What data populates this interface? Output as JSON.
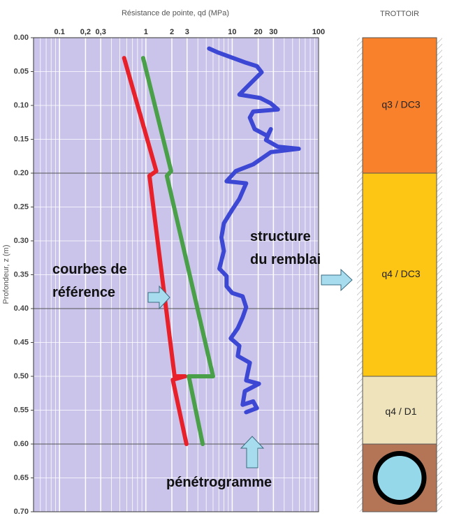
{
  "chart_data": {
    "type": "line",
    "title": "Résistance de pointe, qd (MPa)",
    "y_label": "Profondeur, z (m)",
    "x_log": true,
    "y_inverted": true,
    "background": "#cbc4ea",
    "xlim": [
      0.05,
      100
    ],
    "xticks": [
      0.1,
      {
        "value": 0.2,
        "label": "0,2"
      },
      {
        "value": 0.3,
        "label": "0,3"
      },
      1,
      2,
      3,
      10,
      20,
      30,
      100
    ],
    "xticks_minor": [
      0.06,
      0.07,
      0.08,
      0.09,
      0.4,
      0.5,
      0.6,
      0.7,
      0.8,
      0.9,
      4,
      5,
      6,
      7,
      8,
      9,
      40,
      50,
      60,
      70,
      80,
      90
    ],
    "ylim": [
      0,
      0.7
    ],
    "yticks": [
      {
        "value": 0,
        "label": "0.00"
      },
      {
        "value": 0.05,
        "label": "0.05"
      },
      {
        "value": 0.1,
        "label": "0.10"
      },
      {
        "value": 0.15,
        "label": "0.15"
      },
      {
        "value": 0.2,
        "label": "0.20"
      },
      {
        "value": 0.25,
        "label": "0.25"
      },
      {
        "value": 0.3,
        "label": "0.30"
      },
      {
        "value": 0.35,
        "label": "0.35"
      },
      {
        "value": 0.4,
        "label": "0.40"
      },
      {
        "value": 0.45,
        "label": "0.45"
      },
      {
        "value": 0.5,
        "label": "0.50"
      },
      {
        "value": 0.55,
        "label": "0.55"
      },
      {
        "value": 0.6,
        "label": "0.60"
      },
      {
        "value": 0.65,
        "label": "0.65"
      },
      {
        "value": 0.7,
        "label": "0.70"
      }
    ],
    "yticks_major": [
      0.2,
      0.4,
      0.6
    ],
    "series": [
      {
        "color": "#e8202a",
        "x": [
          0.56,
          1.32,
          1.1,
          2.15,
          2.85,
          2.05,
          2.95
        ],
        "y": [
          0.03,
          0.197,
          0.204,
          0.5,
          0.5,
          0.505,
          0.6
        ]
      },
      {
        "color": "#4aa048",
        "x": [
          0.93,
          1.96,
          1.75,
          6.0,
          3.13,
          3.2,
          4.55
        ],
        "y": [
          0.03,
          0.197,
          0.204,
          0.5,
          0.5,
          0.505,
          0.6
        ]
      },
      {
        "color": "#3c48d4",
        "x": [
          5.4,
          6.9,
          14.5,
          19.3,
          21.9,
          12.1,
          21.1,
          28,
          33.8,
          17.5,
          16,
          18.2,
          25.5,
          28,
          24.6,
          33.8,
          59,
          28,
          17.5,
          11,
          8.6,
          14.5,
          12.1,
          10,
          8.0,
          7.5,
          8.0,
          7.1,
          8.6,
          8.6,
          10,
          13.2,
          14.5,
          13.2,
          11.6,
          9.6,
          12.1,
          11.6,
          16,
          14.5,
          20.4,
          14.0,
          13.2,
          17.5,
          19.3,
          14.5
        ],
        "y": [
          0.016,
          0.022,
          0.037,
          0.042,
          0.051,
          0.084,
          0.089,
          0.097,
          0.106,
          0.109,
          0.118,
          0.135,
          0.145,
          0.135,
          0.151,
          0.161,
          0.164,
          0.169,
          0.187,
          0.197,
          0.212,
          0.215,
          0.238,
          0.254,
          0.274,
          0.295,
          0.315,
          0.341,
          0.352,
          0.367,
          0.377,
          0.382,
          0.398,
          0.413,
          0.429,
          0.444,
          0.455,
          0.47,
          0.48,
          0.506,
          0.511,
          0.522,
          0.542,
          0.537,
          0.547,
          0.553
        ]
      }
    ],
    "annotations": [
      {
        "lines": [
          "courbes de",
          "référence"
        ]
      },
      {
        "lines": [
          "structure",
          "du remblai"
        ]
      },
      {
        "lines": [
          "pénétrogramme"
        ]
      }
    ]
  },
  "column": {
    "title": "TROTTOIR",
    "layers": [
      {
        "label": "q3 / DC3",
        "top": 0,
        "bottom": 0.2,
        "color": "#f9812c"
      },
      {
        "label": "q4 / DC3",
        "top": 0.2,
        "bottom": 0.5,
        "color": "#fdc514"
      },
      {
        "label": "q4 / D1",
        "top": 0.5,
        "bottom": 0.6,
        "color": "#efe3bb"
      },
      {
        "top": 0.6,
        "bottom": 0.7,
        "color": "#b47556"
      }
    ]
  }
}
